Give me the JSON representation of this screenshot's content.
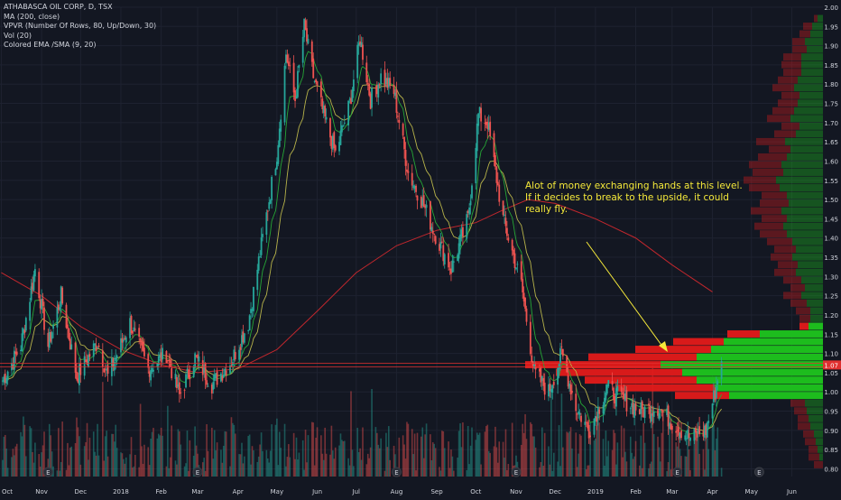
{
  "legend": {
    "symbol": "ATHABASCA OIL CORP, D, TSX",
    "ma": "MA (200, close)",
    "vpvr": "VPVR (Number Of Rows, 80, Up/Down, 30)",
    "vol": "Vol (20)",
    "ema": "Colored EMA /SMA (9, 20)"
  },
  "annotation": {
    "text": "Alot of money exchanging hands at this level. If it decides to break to the upside, it could really fly."
  },
  "colors": {
    "background": "#131722",
    "grid": "#1e2230",
    "up": "#26a69a",
    "down": "#ef5350",
    "ma200": "#c2272d",
    "ema": "#26a636",
    "sma": "#b7b34a",
    "vpvr_up": "#1ec51e",
    "vpvr_down": "#e31a1a",
    "hline": "#e03030",
    "arrow": "#f5e93a",
    "price_tag": "#e03030",
    "earnings": "#3a3d45"
  },
  "chart_data": {
    "type": "candlestick",
    "title": "ATHABASCA OIL CORP, D, TSX",
    "x_range": [
      "2017-10-01",
      "2019-06-30"
    ],
    "y_range": [
      0.78,
      2.0
    ],
    "y_ticks": [
      "2.00",
      "1.95",
      "1.90",
      "1.85",
      "1.80",
      "1.75",
      "1.70",
      "1.65",
      "1.60",
      "1.55",
      "1.50",
      "1.45",
      "1.40",
      "1.35",
      "1.30",
      "1.25",
      "1.20",
      "1.15",
      "1.10",
      "1.05",
      "1.00",
      "0.95",
      "0.90",
      "0.85",
      "0.80"
    ],
    "x_ticks": [
      "Oct",
      "Nov",
      "Dec",
      "2018",
      "Feb",
      "Mar",
      "Apr",
      "May",
      "Jun",
      "Jul",
      "Aug",
      "Sep",
      "Oct",
      "Nov",
      "Dec",
      "2019",
      "Feb",
      "Mar",
      "Apr",
      "May",
      "Jun"
    ],
    "last_price": "1.07",
    "horizontal_level": 1.07,
    "price_path": [
      [
        "2017-10-02",
        1.03
      ],
      [
        "2017-10-16",
        1.12
      ],
      [
        "2017-10-27",
        1.32
      ],
      [
        "2017-11-06",
        1.12
      ],
      [
        "2017-11-16",
        1.25
      ],
      [
        "2017-11-28",
        1.04
      ],
      [
        "2017-12-14",
        1.13
      ],
      [
        "2017-12-22",
        1.04
      ],
      [
        "2018-01-08",
        1.18
      ],
      [
        "2018-01-22",
        1.06
      ],
      [
        "2018-02-05",
        1.1
      ],
      [
        "2018-02-15",
        0.99
      ],
      [
        "2018-02-27",
        1.09
      ],
      [
        "2018-03-12",
        1.02
      ],
      [
        "2018-03-27",
        1.08
      ],
      [
        "2018-04-09",
        1.18
      ],
      [
        "2018-04-20",
        1.4
      ],
      [
        "2018-05-01",
        1.62
      ],
      [
        "2018-05-08",
        1.88
      ],
      [
        "2018-05-15",
        1.76
      ],
      [
        "2018-05-22",
        1.95
      ],
      [
        "2018-05-29",
        1.82
      ],
      [
        "2018-06-06",
        1.72
      ],
      [
        "2018-06-15",
        1.62
      ],
      [
        "2018-06-26",
        1.75
      ],
      [
        "2018-07-04",
        1.92
      ],
      [
        "2018-07-12",
        1.76
      ],
      [
        "2018-07-20",
        1.82
      ],
      [
        "2018-07-30",
        1.78
      ],
      [
        "2018-08-10",
        1.57
      ],
      [
        "2018-08-20",
        1.5
      ],
      [
        "2018-09-01",
        1.4
      ],
      [
        "2018-09-12",
        1.32
      ],
      [
        "2018-09-25",
        1.45
      ],
      [
        "2018-10-03",
        1.72
      ],
      [
        "2018-10-10",
        1.7
      ],
      [
        "2018-10-22",
        1.45
      ],
      [
        "2018-11-05",
        1.28
      ],
      [
        "2018-11-15",
        1.05
      ],
      [
        "2018-11-26",
        1.0
      ],
      [
        "2018-12-06",
        1.1
      ],
      [
        "2018-12-17",
        0.96
      ],
      [
        "2018-12-27",
        0.9
      ],
      [
        "2019-01-10",
        1.01
      ],
      [
        "2019-01-22",
        0.98
      ],
      [
        "2019-02-05",
        0.95
      ],
      [
        "2019-02-18",
        0.96
      ],
      [
        "2019-03-01",
        0.92
      ],
      [
        "2019-03-15",
        0.88
      ],
      [
        "2019-03-27",
        0.9
      ],
      [
        "2019-04-03",
        1.0
      ],
      [
        "2019-04-08",
        1.08
      ]
    ],
    "series": [
      {
        "name": "MA (200, close)",
        "values": [
          [
            "2017-10-01",
            1.31
          ],
          [
            "2017-11-01",
            1.25
          ],
          [
            "2017-12-01",
            1.17
          ],
          [
            "2018-01-01",
            1.11
          ],
          [
            "2018-02-01",
            1.07
          ],
          [
            "2018-03-01",
            1.05
          ],
          [
            "2018-04-01",
            1.06
          ],
          [
            "2018-05-01",
            1.11
          ],
          [
            "2018-06-01",
            1.21
          ],
          [
            "2018-07-01",
            1.31
          ],
          [
            "2018-08-01",
            1.38
          ],
          [
            "2018-09-01",
            1.42
          ],
          [
            "2018-10-01",
            1.44
          ],
          [
            "2018-10-20",
            1.47
          ],
          [
            "2018-11-10",
            1.5
          ],
          [
            "2018-12-01",
            1.49
          ],
          [
            "2019-01-01",
            1.45
          ],
          [
            "2019-02-01",
            1.4
          ],
          [
            "2019-03-01",
            1.33
          ],
          [
            "2019-04-01",
            1.26
          ]
        ]
      },
      {
        "name": "Colored EMA /SMA (9, 20)"
      }
    ],
    "vpvr": [
      [
        0.81,
        0.0,
        0.05
      ],
      [
        0.83,
        0.02,
        0.06
      ],
      [
        0.85,
        0.03,
        0.05
      ],
      [
        0.87,
        0.04,
        0.06
      ],
      [
        0.89,
        0.05,
        0.06
      ],
      [
        0.91,
        0.07,
        0.07
      ],
      [
        0.93,
        0.08,
        0.06
      ],
      [
        0.95,
        0.09,
        0.07
      ],
      [
        0.97,
        0.1,
        0.08
      ],
      [
        0.99,
        0.52,
        0.3
      ],
      [
        1.01,
        0.6,
        0.55
      ],
      [
        1.03,
        0.7,
        0.62
      ],
      [
        1.05,
        0.78,
        0.7
      ],
      [
        1.07,
        0.9,
        0.75
      ],
      [
        1.09,
        0.7,
        0.6
      ],
      [
        1.11,
        0.62,
        0.42
      ],
      [
        1.13,
        0.55,
        0.28
      ],
      [
        1.15,
        0.35,
        0.18
      ],
      [
        1.17,
        0.08,
        0.05
      ],
      [
        1.19,
        0.07,
        0.06
      ],
      [
        1.21,
        0.07,
        0.08
      ],
      [
        1.23,
        0.09,
        0.09
      ],
      [
        1.25,
        0.12,
        0.1
      ],
      [
        1.27,
        0.1,
        0.08
      ],
      [
        1.29,
        0.12,
        0.1
      ],
      [
        1.31,
        0.15,
        0.12
      ],
      [
        1.33,
        0.14,
        0.11
      ],
      [
        1.35,
        0.17,
        0.12
      ],
      [
        1.37,
        0.15,
        0.12
      ],
      [
        1.39,
        0.17,
        0.14
      ],
      [
        1.41,
        0.2,
        0.15
      ],
      [
        1.43,
        0.22,
        0.16
      ],
      [
        1.45,
        0.2,
        0.14
      ],
      [
        1.47,
        0.23,
        0.17
      ],
      [
        1.49,
        0.19,
        0.16
      ],
      [
        1.51,
        0.2,
        0.14
      ],
      [
        1.53,
        0.24,
        0.17
      ],
      [
        1.55,
        0.26,
        0.18
      ],
      [
        1.57,
        0.22,
        0.17
      ],
      [
        1.59,
        0.23,
        0.18
      ],
      [
        1.61,
        0.2,
        0.16
      ],
      [
        1.63,
        0.18,
        0.12
      ],
      [
        1.65,
        0.21,
        0.16
      ],
      [
        1.67,
        0.15,
        0.12
      ],
      [
        1.69,
        0.13,
        0.1
      ],
      [
        1.71,
        0.18,
        0.13
      ],
      [
        1.73,
        0.16,
        0.12
      ],
      [
        1.75,
        0.14,
        0.11
      ],
      [
        1.77,
        0.13,
        0.1
      ],
      [
        1.79,
        0.16,
        0.12
      ],
      [
        1.81,
        0.14,
        0.11
      ],
      [
        1.83,
        0.12,
        0.1
      ],
      [
        1.85,
        0.12,
        0.11
      ],
      [
        1.87,
        0.12,
        0.1
      ],
      [
        1.89,
        0.09,
        0.08
      ],
      [
        1.91,
        0.1,
        0.07
      ],
      [
        1.93,
        0.07,
        0.06
      ],
      [
        1.95,
        0.06,
        0.05
      ],
      [
        1.97,
        0.03,
        0.02
      ]
    ],
    "earnings_markers": [
      "2017-11-06",
      "2018-03-01",
      "2018-08-01",
      "2018-11-01",
      "2019-03-05",
      "2019-05-07"
    ],
    "earnings_label": "E"
  }
}
